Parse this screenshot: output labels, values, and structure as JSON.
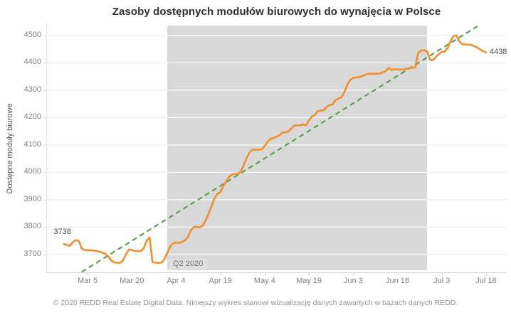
{
  "footer": "© 2020 REDD Real Estate Digital Data. Niniejszy wykres stanowi wizualizację danych zawartych w bazach danych REDD.",
  "chart_data": {
    "type": "line",
    "title": "Zasoby dostępnych modułów biurowych do wynajęcia w Polsce",
    "ylabel": "Dostępne moduły biurowe",
    "x_encoding": "day index, day 0 = Feb 26 2020",
    "x_domain_days": [
      -6,
      150
    ],
    "y_domain": [
      3632,
      4544
    ],
    "y_ticks": [
      3700,
      3800,
      3900,
      4000,
      4100,
      4200,
      4300,
      4400,
      4500
    ],
    "x_ticks": [
      {
        "day": 8,
        "label": "Mar 5"
      },
      {
        "day": 23,
        "label": "Mar 20"
      },
      {
        "day": 38,
        "label": "Apr 4"
      },
      {
        "day": 53,
        "label": "Apr 19"
      },
      {
        "day": 68,
        "label": "May 4"
      },
      {
        "day": 83,
        "label": "May 19"
      },
      {
        "day": 98,
        "label": "Jun 3"
      },
      {
        "day": 113,
        "label": "Jun 18"
      },
      {
        "day": 128,
        "label": "Jul 3"
      },
      {
        "day": 143,
        "label": "Jul 18"
      }
    ],
    "band": {
      "label": "Q2 2020",
      "start_day": 35,
      "end_day": 123,
      "color": "#d9d9d9"
    },
    "trendline": {
      "color": "#59a14f",
      "style": "dashed",
      "start": {
        "day": 6,
        "value": 3636
      },
      "end": {
        "day": 141,
        "value": 4540
      }
    },
    "annotations": {
      "first_value": 3738,
      "last_value": 4438
    },
    "series": [
      {
        "name": "Dostępne moduły biurowe",
        "color": "#f28e2b",
        "points": [
          [
            0,
            3738
          ],
          [
            2,
            3731
          ],
          [
            3,
            3745
          ],
          [
            4,
            3752
          ],
          [
            5,
            3750
          ],
          [
            6,
            3722
          ],
          [
            7,
            3716
          ],
          [
            8,
            3715
          ],
          [
            10,
            3715
          ],
          [
            12,
            3710
          ],
          [
            14,
            3703
          ],
          [
            15,
            3692
          ],
          [
            16,
            3678
          ],
          [
            17,
            3671
          ],
          [
            19,
            3669
          ],
          [
            20,
            3678
          ],
          [
            21,
            3700
          ],
          [
            22,
            3718
          ],
          [
            23,
            3716
          ],
          [
            24,
            3713
          ],
          [
            26,
            3712
          ],
          [
            27,
            3722
          ],
          [
            28,
            3750
          ],
          [
            29,
            3762
          ],
          [
            30,
            3672
          ],
          [
            32,
            3669
          ],
          [
            33,
            3670
          ],
          [
            34,
            3682
          ],
          [
            35,
            3705
          ],
          [
            36,
            3730
          ],
          [
            37,
            3740
          ],
          [
            38,
            3744
          ],
          [
            39,
            3741
          ],
          [
            40,
            3746
          ],
          [
            41,
            3752
          ],
          [
            42,
            3764
          ],
          [
            43,
            3788
          ],
          [
            44,
            3800
          ],
          [
            45,
            3801
          ],
          [
            46,
            3799
          ],
          [
            47,
            3805
          ],
          [
            48,
            3825
          ],
          [
            49,
            3848
          ],
          [
            50,
            3878
          ],
          [
            51,
            3905
          ],
          [
            52,
            3922
          ],
          [
            53,
            3928
          ],
          [
            54,
            3950
          ],
          [
            55,
            3968
          ],
          [
            56,
            3984
          ],
          [
            57,
            3992
          ],
          [
            58,
            3995
          ],
          [
            59,
            3994
          ],
          [
            60,
            4005
          ],
          [
            61,
            4030
          ],
          [
            62,
            4055
          ],
          [
            63,
            4075
          ],
          [
            64,
            4083
          ],
          [
            66,
            4082
          ],
          [
            67,
            4085
          ],
          [
            68,
            4096
          ],
          [
            69,
            4112
          ],
          [
            70,
            4122
          ],
          [
            71,
            4126
          ],
          [
            72,
            4130
          ],
          [
            73,
            4135
          ],
          [
            74,
            4145
          ],
          [
            76,
            4149
          ],
          [
            77,
            4160
          ],
          [
            78,
            4171
          ],
          [
            80,
            4172
          ],
          [
            81,
            4175
          ],
          [
            82,
            4171
          ],
          [
            83,
            4190
          ],
          [
            84,
            4204
          ],
          [
            85,
            4210
          ],
          [
            86,
            4224
          ],
          [
            88,
            4227
          ],
          [
            89,
            4239
          ],
          [
            90,
            4246
          ],
          [
            91,
            4248
          ],
          [
            92,
            4264
          ],
          [
            93,
            4270
          ],
          [
            94,
            4274
          ],
          [
            95,
            4293
          ],
          [
            96,
            4320
          ],
          [
            97,
            4338
          ],
          [
            98,
            4345
          ],
          [
            100,
            4348
          ],
          [
            101,
            4352
          ],
          [
            102,
            4356
          ],
          [
            103,
            4360
          ],
          [
            105,
            4360
          ],
          [
            107,
            4361
          ],
          [
            109,
            4370
          ],
          [
            110,
            4381
          ],
          [
            111,
            4374
          ],
          [
            112,
            4377
          ],
          [
            114,
            4376
          ],
          [
            115,
            4375
          ],
          [
            116,
            4378
          ],
          [
            117,
            4381
          ],
          [
            119,
            4383
          ],
          [
            120,
            4437
          ],
          [
            121,
            4445
          ],
          [
            122,
            4446
          ],
          [
            123,
            4443
          ],
          [
            124,
            4411
          ],
          [
            125,
            4410
          ],
          [
            126,
            4422
          ],
          [
            127,
            4432
          ],
          [
            128,
            4440
          ],
          [
            129,
            4441
          ],
          [
            130,
            4455
          ],
          [
            131,
            4481
          ],
          [
            132,
            4498
          ],
          [
            133,
            4500
          ],
          [
            134,
            4477
          ],
          [
            135,
            4468
          ],
          [
            136,
            4467
          ],
          [
            138,
            4466
          ],
          [
            139,
            4461
          ],
          [
            140,
            4456
          ],
          [
            141,
            4449
          ],
          [
            142,
            4443
          ],
          [
            143,
            4438
          ]
        ]
      }
    ]
  }
}
